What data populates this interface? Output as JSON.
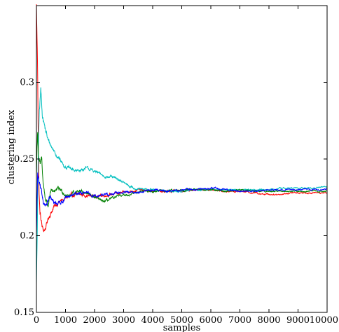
{
  "chart_data": {
    "type": "line",
    "xlabel": "samples",
    "ylabel": "clustering index",
    "xlim": [
      0,
      10000
    ],
    "ylim": [
      0.15,
      0.35
    ],
    "xticks": [
      0,
      1000,
      2000,
      3000,
      4000,
      5000,
      6000,
      7000,
      8000,
      9000,
      10000
    ],
    "xtick_labels": [
      "0",
      "1000",
      "2000",
      "3000",
      "4000",
      "5000",
      "6000",
      "7000",
      "8000",
      "9000",
      "10000"
    ],
    "yticks": [
      0.15,
      0.2,
      0.25,
      0.3
    ],
    "ytick_labels": [
      "0.15",
      "0.2",
      "0.25",
      "0.3"
    ],
    "grid": false,
    "legend": "none",
    "series": [
      {
        "color": "#ff0000",
        "points": [
          [
            0,
            0.35
          ],
          [
            20,
            0.33
          ],
          [
            40,
            0.31
          ],
          [
            60,
            0.27
          ],
          [
            90,
            0.23
          ],
          [
            120,
            0.215
          ],
          [
            160,
            0.21
          ],
          [
            200,
            0.205
          ],
          [
            260,
            0.203
          ],
          [
            330,
            0.206
          ],
          [
            420,
            0.212
          ],
          [
            520,
            0.216
          ],
          [
            620,
            0.219
          ],
          [
            760,
            0.222
          ],
          [
            900,
            0.223
          ],
          [
            1050,
            0.225
          ],
          [
            1250,
            0.226
          ],
          [
            1500,
            0.227
          ],
          [
            1800,
            0.226
          ],
          [
            2200,
            0.226
          ],
          [
            2600,
            0.227
          ],
          [
            3000,
            0.228
          ],
          [
            3500,
            0.23
          ],
          [
            4000,
            0.229
          ],
          [
            4500,
            0.229
          ],
          [
            5000,
            0.229
          ],
          [
            5500,
            0.23
          ],
          [
            6000,
            0.23
          ],
          [
            6500,
            0.229
          ],
          [
            7000,
            0.229
          ],
          [
            7500,
            0.228
          ],
          [
            8000,
            0.227
          ],
          [
            8400,
            0.227
          ],
          [
            8800,
            0.228
          ],
          [
            9200,
            0.228
          ],
          [
            9600,
            0.228
          ],
          [
            10000,
            0.228
          ]
        ]
      },
      {
        "color": "#00bfbf",
        "points": [
          [
            0,
            0.17
          ],
          [
            30,
            0.2
          ],
          [
            60,
            0.25
          ],
          [
            100,
            0.28
          ],
          [
            150,
            0.295
          ],
          [
            200,
            0.28
          ],
          [
            300,
            0.27
          ],
          [
            400,
            0.262
          ],
          [
            550,
            0.257
          ],
          [
            700,
            0.253
          ],
          [
            900,
            0.247
          ],
          [
            1100,
            0.244
          ],
          [
            1400,
            0.242
          ],
          [
            1700,
            0.244
          ],
          [
            2000,
            0.242
          ],
          [
            2300,
            0.239
          ],
          [
            2600,
            0.238
          ],
          [
            2900,
            0.236
          ],
          [
            3200,
            0.232
          ],
          [
            3600,
            0.23
          ],
          [
            4000,
            0.23
          ],
          [
            4500,
            0.229
          ],
          [
            5000,
            0.229
          ],
          [
            5500,
            0.23
          ],
          [
            6000,
            0.23
          ],
          [
            6500,
            0.23
          ],
          [
            7000,
            0.23
          ],
          [
            7500,
            0.23
          ],
          [
            8000,
            0.23
          ],
          [
            8500,
            0.231
          ],
          [
            9000,
            0.231
          ],
          [
            9500,
            0.231
          ],
          [
            10000,
            0.232
          ]
        ]
      },
      {
        "color": "#008000",
        "points": [
          [
            0,
            0.24
          ],
          [
            40,
            0.27
          ],
          [
            80,
            0.25
          ],
          [
            130,
            0.245
          ],
          [
            180,
            0.25
          ],
          [
            230,
            0.235
          ],
          [
            300,
            0.225
          ],
          [
            400,
            0.22
          ],
          [
            500,
            0.228
          ],
          [
            650,
            0.23
          ],
          [
            800,
            0.23
          ],
          [
            950,
            0.228
          ],
          [
            1100,
            0.226
          ],
          [
            1300,
            0.228
          ],
          [
            1500,
            0.23
          ],
          [
            1700,
            0.228
          ],
          [
            2000,
            0.225
          ],
          [
            2300,
            0.222
          ],
          [
            2600,
            0.224
          ],
          [
            2900,
            0.226
          ],
          [
            3200,
            0.227
          ],
          [
            3600,
            0.229
          ],
          [
            4000,
            0.229
          ],
          [
            4500,
            0.229
          ],
          [
            5000,
            0.23
          ],
          [
            5500,
            0.23
          ],
          [
            6000,
            0.23
          ],
          [
            6500,
            0.229
          ],
          [
            7000,
            0.23
          ],
          [
            7500,
            0.229
          ],
          [
            8000,
            0.229
          ],
          [
            8500,
            0.229
          ],
          [
            9000,
            0.229
          ],
          [
            9500,
            0.229
          ],
          [
            10000,
            0.229
          ]
        ]
      },
      {
        "color": "#0000ff",
        "points": [
          [
            0,
            0.2
          ],
          [
            40,
            0.24
          ],
          [
            80,
            0.235
          ],
          [
            130,
            0.23
          ],
          [
            180,
            0.225
          ],
          [
            250,
            0.222
          ],
          [
            350,
            0.22
          ],
          [
            450,
            0.224
          ],
          [
            600,
            0.221
          ],
          [
            800,
            0.222
          ],
          [
            1000,
            0.224
          ],
          [
            1200,
            0.226
          ],
          [
            1500,
            0.228
          ],
          [
            1800,
            0.227
          ],
          [
            2100,
            0.226
          ],
          [
            2500,
            0.227
          ],
          [
            2900,
            0.228
          ],
          [
            3300,
            0.228
          ],
          [
            3700,
            0.229
          ],
          [
            4100,
            0.23
          ],
          [
            4500,
            0.229
          ],
          [
            5000,
            0.23
          ],
          [
            5500,
            0.23
          ],
          [
            6000,
            0.231
          ],
          [
            6500,
            0.23
          ],
          [
            7000,
            0.229
          ],
          [
            7500,
            0.229
          ],
          [
            8000,
            0.23
          ],
          [
            8500,
            0.23
          ],
          [
            9000,
            0.23
          ],
          [
            9500,
            0.23
          ],
          [
            10000,
            0.23
          ]
        ]
      }
    ]
  }
}
